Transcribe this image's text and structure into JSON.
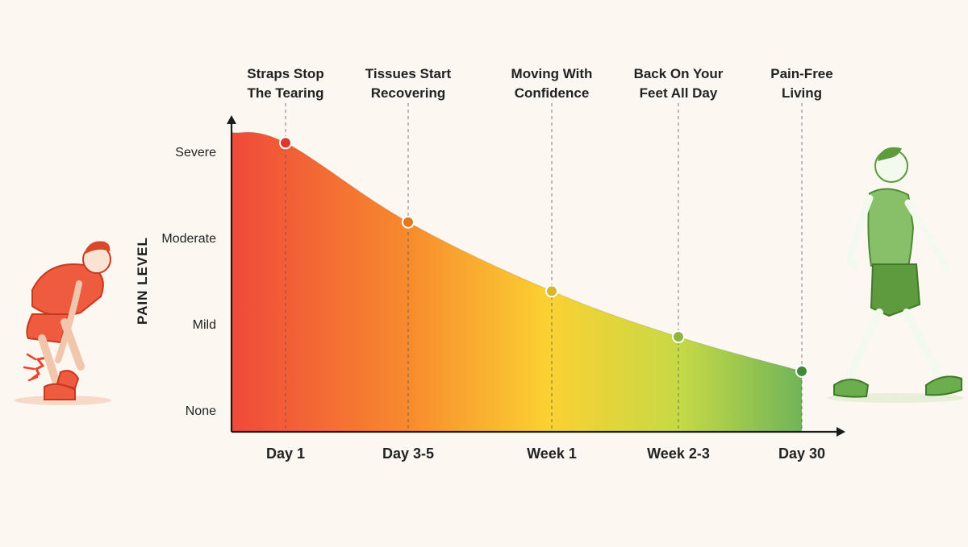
{
  "chart_data": {
    "type": "area",
    "title": "",
    "ylabel": "PAIN LEVEL",
    "xlabel": "",
    "y_levels": [
      "None",
      "Mild",
      "Moderate",
      "Severe"
    ],
    "ylim": [
      0,
      3.25
    ],
    "categories": [
      "Day 1",
      "Day 3-5",
      "Week 1",
      "Week 2-3",
      "Day 30"
    ],
    "milestones": [
      [
        "Straps Stop",
        "The Tearing"
      ],
      [
        "Tissues Start",
        "Recovering"
      ],
      [
        "Moving With",
        "Confidence"
      ],
      [
        "Back On Your",
        "Feet All Day"
      ],
      [
        "Pain-Free",
        "Living"
      ]
    ],
    "values": [
      3.1,
      2.18,
      1.38,
      0.85,
      0.45
    ],
    "marker_colors": [
      "#d93a2b",
      "#e07a22",
      "#d6b62c",
      "#8fb53d",
      "#3f8a3a"
    ],
    "gradient_colors": [
      "#ef4a3a",
      "#f7892e",
      "#fbd132",
      "#c6d946",
      "#6db35a"
    ],
    "illustrations": {
      "left": "person-in-pain-holding-ankle",
      "right": "person-walking-happily"
    }
  }
}
